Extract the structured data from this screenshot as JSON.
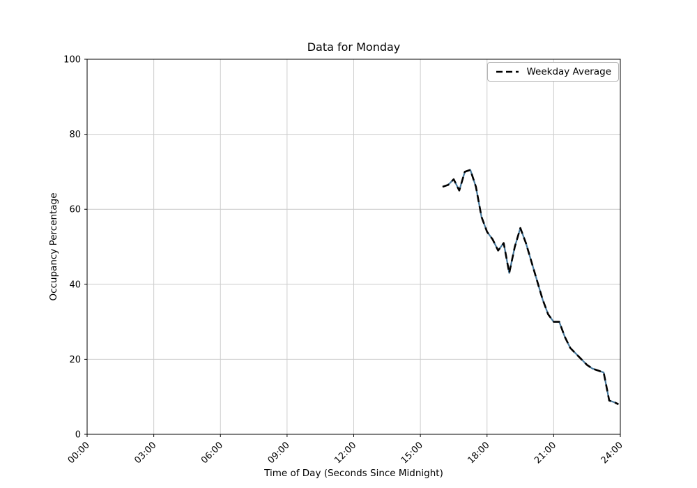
{
  "chart_data": {
    "type": "line",
    "title": "Data for Monday",
    "xlabel": "Time of Day (Seconds Since Midnight)",
    "ylabel": "Occupancy Percentage",
    "x_ticks": [
      "00:00",
      "03:00",
      "06:00",
      "09:00",
      "12:00",
      "15:00",
      "18:00",
      "21:00",
      "24:00"
    ],
    "y_ticks": [
      0,
      20,
      40,
      60,
      80,
      100
    ],
    "ylim": [
      0,
      100
    ],
    "x_range_seconds": [
      0,
      86400
    ],
    "grid": true,
    "legend": {
      "position": "top-right",
      "entries": [
        {
          "label": "Weekday Average",
          "line_style": "dashed",
          "color": "#000000"
        }
      ]
    },
    "series": [
      {
        "name": "Weekday Average",
        "line_style": "dashed",
        "color": "#000000",
        "underlay_color": "#46789c",
        "x": [
          "16:00",
          "16:15",
          "16:30",
          "16:45",
          "17:00",
          "17:15",
          "17:30",
          "17:45",
          "18:00",
          "18:15",
          "18:30",
          "18:45",
          "19:00",
          "19:15",
          "19:30",
          "19:45",
          "20:00",
          "20:15",
          "20:30",
          "20:45",
          "21:00",
          "21:15",
          "21:30",
          "21:45",
          "22:00",
          "22:15",
          "22:30",
          "22:45",
          "23:00",
          "23:15",
          "23:30",
          "23:45",
          "23:55"
        ],
        "values": [
          66,
          66.5,
          68,
          65,
          70,
          70.5,
          66,
          58,
          54,
          52,
          49,
          51,
          43,
          50,
          55,
          51,
          46,
          41,
          36,
          32,
          30,
          30,
          26,
          23,
          21.5,
          20,
          18.5,
          17.5,
          17,
          16.5,
          9,
          8.5,
          8
        ]
      }
    ]
  }
}
